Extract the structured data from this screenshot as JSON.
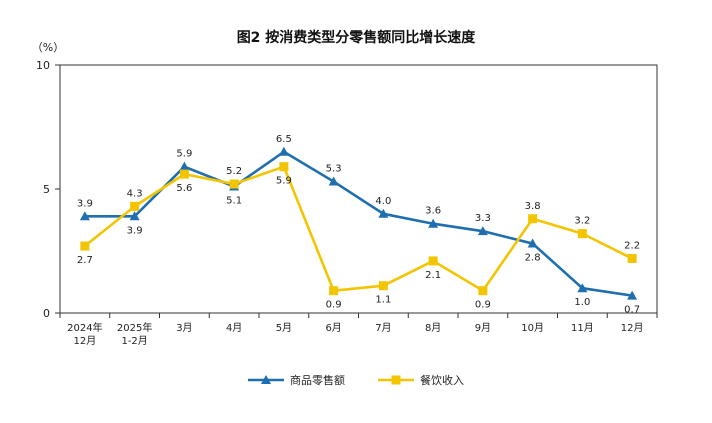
{
  "chart_data": {
    "type": "line",
    "title": "图2  按消费类型分零售额同比增长速度",
    "ylabel": "（%）",
    "xlabel": "",
    "ylim": [
      0,
      10
    ],
    "yticks": [
      0,
      5,
      10
    ],
    "grid": false,
    "legend_position": "bottom-center",
    "categories": [
      "2024年\n12月",
      "2025年\n1-2月",
      "3月",
      "4月",
      "5月",
      "6月",
      "7月",
      "8月",
      "9月",
      "10月",
      "11月",
      "12月"
    ],
    "series": [
      {
        "name": "商品零售额",
        "color": "#1f6fb0",
        "marker": "triangle",
        "values": [
          3.9,
          3.9,
          5.9,
          5.1,
          6.5,
          5.3,
          4.0,
          3.6,
          3.3,
          2.8,
          1.0,
          0.7
        ],
        "labels": [
          "3.9",
          "3.9",
          "5.9",
          "5.1",
          "6.5",
          "5.3",
          "4.0",
          "3.6",
          "3.3",
          "2.8",
          "1.0",
          "0.7"
        ]
      },
      {
        "name": "餐饮收入",
        "color": "#f2c500",
        "marker": "square",
        "values": [
          2.7,
          4.3,
          5.6,
          5.2,
          5.9,
          0.9,
          1.1,
          2.1,
          0.9,
          3.8,
          3.2,
          2.2
        ],
        "labels": [
          "2.7",
          "4.3",
          "5.6",
          "5.2",
          "5.9",
          "0.9",
          "1.1",
          "2.1",
          "0.9",
          "3.8",
          "3.2",
          "2.2"
        ]
      }
    ]
  }
}
